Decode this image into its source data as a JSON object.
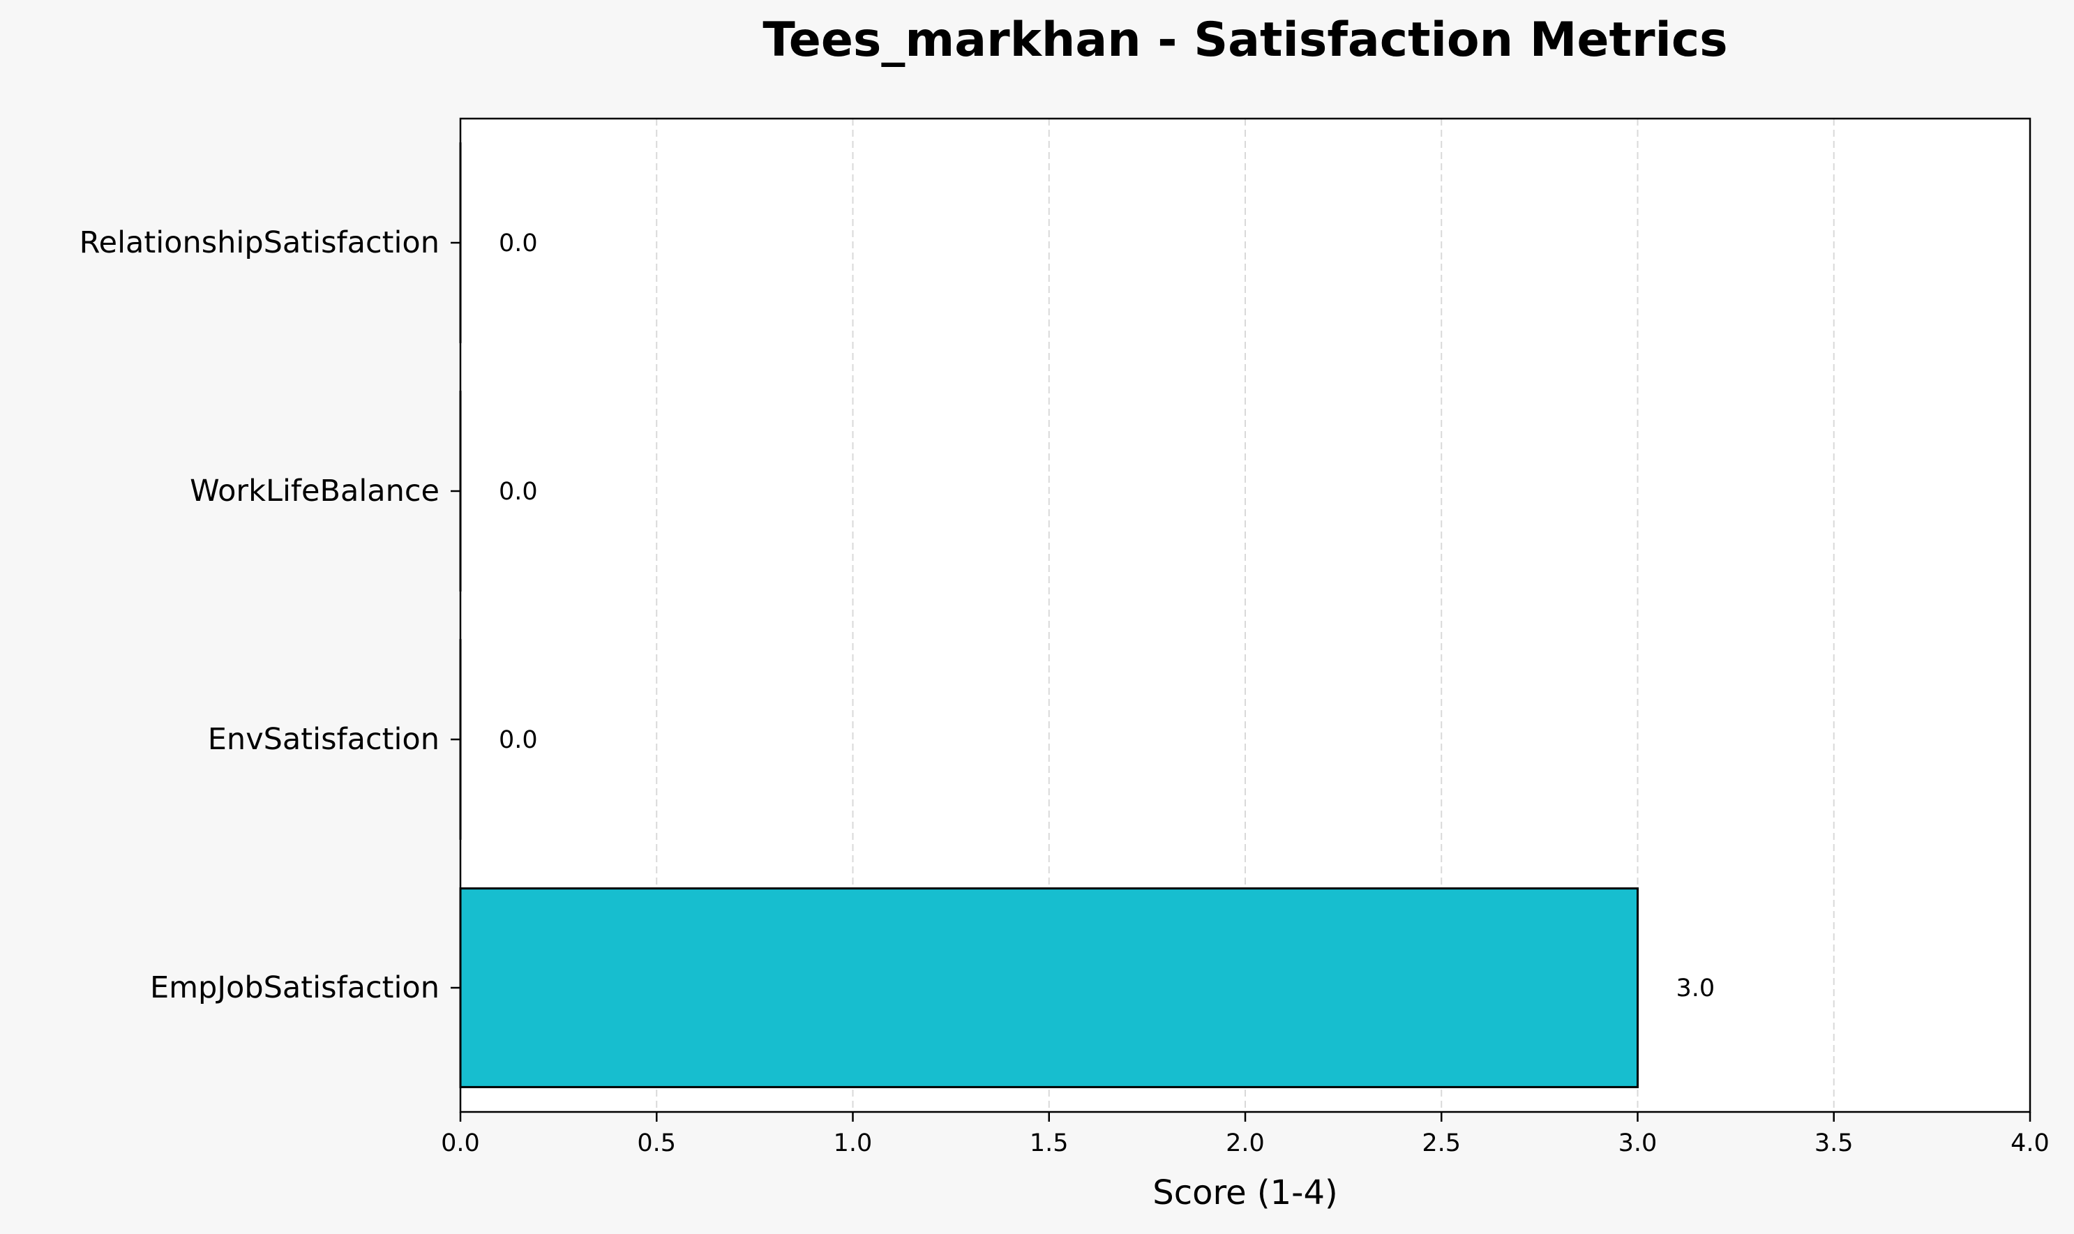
{
  "chart_data": {
    "type": "bar",
    "orientation": "horizontal",
    "title": "Tees_markhan - Satisfaction Metrics",
    "xlabel": "Score (1-4)",
    "ylabel": "",
    "categories": [
      "EmpJobSatisfaction",
      "EnvSatisfaction",
      "WorkLifeBalance",
      "RelationshipSatisfaction"
    ],
    "values": [
      3.0,
      0.0,
      0.0,
      0.0
    ],
    "data_labels": [
      "3.0",
      "0.0",
      "0.0",
      "0.0"
    ],
    "xlim": [
      0,
      4
    ],
    "xticks": [
      0,
      0.5,
      1.0,
      1.5,
      2.0,
      2.5,
      3.0,
      3.5,
      4.0
    ],
    "xtick_labels": [
      "0.0",
      "0.5",
      "1.0",
      "1.5",
      "2.0",
      "2.5",
      "3.0",
      "3.5",
      "4.0"
    ],
    "grid": "x-axis dashed",
    "legend": "none",
    "bar_color": "#17becf",
    "bar_edge_color": "#000000",
    "grid_color": "#d9d9d9",
    "background_color": "#f7f7f7",
    "plot_background_color": "#ffffff"
  }
}
